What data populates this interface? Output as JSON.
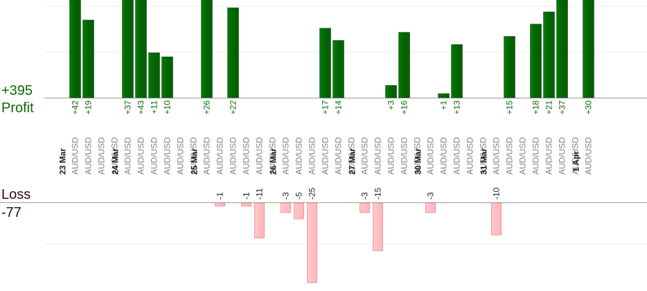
{
  "summary": {
    "profit_total": "+395",
    "profit_label": "Profit",
    "loss_label": "Loss",
    "loss_total": "-77"
  },
  "colors": {
    "profit_bar": "#006400",
    "profit_text": "#0a6a0a",
    "loss_bar": "#ffb6b9",
    "loss_text": "#222222",
    "axis_text": "#808080",
    "date_text": "#222222"
  },
  "chart_data": {
    "type": "bar",
    "categories": [
      {
        "date": "23 Mar",
        "value": 42
      },
      {
        "date": "",
        "value": 19
      },
      {
        "date": "",
        "value": null
      },
      {
        "date": "",
        "value": null
      },
      {
        "date": "24 Mar",
        "value": 37
      },
      {
        "date": "",
        "value": 43
      },
      {
        "date": "",
        "value": 11
      },
      {
        "date": "",
        "value": 10
      },
      {
        "date": "",
        "value": null
      },
      {
        "date": "",
        "value": null
      },
      {
        "date": "25 Mar",
        "value": 26
      },
      {
        "date": "",
        "value": -1
      },
      {
        "date": "",
        "value": 22
      },
      {
        "date": "",
        "value": -1
      },
      {
        "date": "",
        "value": -11
      },
      {
        "date": "",
        "value": null
      },
      {
        "date": "26 Mar",
        "value": -3
      },
      {
        "date": "",
        "value": -5
      },
      {
        "date": "",
        "value": -25
      },
      {
        "date": "",
        "value": 17
      },
      {
        "date": "",
        "value": 14
      },
      {
        "date": "",
        "value": null
      },
      {
        "date": "27 Mar",
        "value": -3
      },
      {
        "date": "",
        "value": -15
      },
      {
        "date": "",
        "value": 3
      },
      {
        "date": "",
        "value": 16
      },
      {
        "date": "",
        "value": null
      },
      {
        "date": "30 Mar",
        "value": -3
      },
      {
        "date": "",
        "value": 1
      },
      {
        "date": "",
        "value": 13
      },
      {
        "date": "",
        "value": null
      },
      {
        "date": "",
        "value": null
      },
      {
        "date": "31 Mar",
        "value": -10
      },
      {
        "date": "",
        "value": 15
      },
      {
        "date": "",
        "value": null
      },
      {
        "date": "",
        "value": 18
      },
      {
        "date": "",
        "value": 21
      },
      {
        "date": "",
        "value": 37
      },
      {
        "date": "",
        "value": null
      },
      {
        "date": "1 Apr",
        "value": 30
      }
    ],
    "pair_label": "AUD/USD",
    "profit_ylim": [
      0,
      23
    ],
    "loss_ylim": [
      -25,
      0
    ],
    "grid": true
  }
}
